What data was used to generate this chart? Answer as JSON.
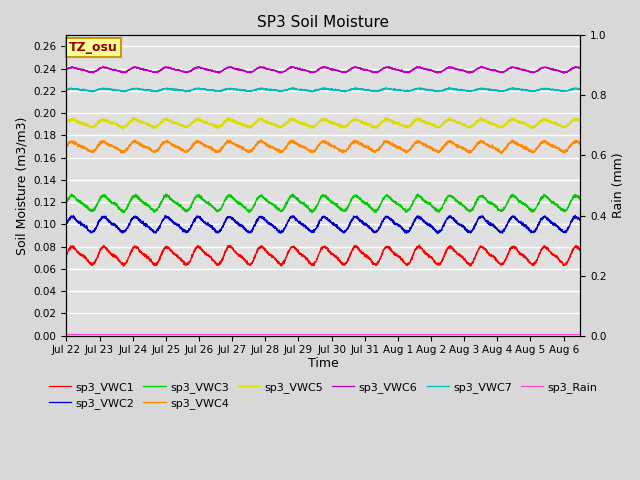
{
  "title": "SP3 Soil Moisture",
  "xlabel": "Time",
  "ylabel_left": "Soil Moisture (m3/m3)",
  "ylabel_right": "Rain (mm)",
  "ylim_left": [
    0.0,
    0.27
  ],
  "ylim_right": [
    0.0,
    1.0
  ],
  "yticks_left": [
    0.0,
    0.02,
    0.04,
    0.06,
    0.08,
    0.1,
    0.12,
    0.14,
    0.16,
    0.18,
    0.2,
    0.22,
    0.24,
    0.26
  ],
  "yticks_right": [
    0.0,
    0.2,
    0.4,
    0.6,
    0.8,
    1.0
  ],
  "xtick_labels": [
    "Jul 22",
    "Jul 23",
    "Jul 24",
    "Jul 25",
    "Jul 26",
    "Jul 27",
    "Jul 28",
    "Jul 29",
    "Jul 30",
    "Jul 31",
    "Aug 1",
    "Aug 2",
    "Aug 3",
    "Aug 4",
    "Aug 5",
    "Aug 6"
  ],
  "series": {
    "sp3_VWC1": {
      "color": "#ff0000",
      "base": 0.072,
      "amp": 0.007,
      "period": 0.95,
      "phase": 0.0,
      "noise": 0.002
    },
    "sp3_VWC2": {
      "color": "#0000cc",
      "base": 0.1,
      "amp": 0.006,
      "period": 0.95,
      "phase": 0.05,
      "noise": 0.002
    },
    "sp3_VWC3": {
      "color": "#00cc00",
      "base": 0.119,
      "amp": 0.006,
      "period": 0.95,
      "phase": 0.05,
      "noise": 0.002
    },
    "sp3_VWC4": {
      "color": "#ff8800",
      "base": 0.17,
      "amp": 0.004,
      "period": 0.95,
      "phase": 0.1,
      "noise": 0.002
    },
    "sp3_VWC5": {
      "color": "#dddd00",
      "base": 0.191,
      "amp": 0.003,
      "period": 0.95,
      "phase": 0.1,
      "noise": 0.002
    },
    "sp3_VWC6": {
      "color": "#bb00bb",
      "base": 0.239,
      "amp": 0.002,
      "period": 0.95,
      "phase": 0.0,
      "noise": 0.001
    },
    "sp3_VWC7": {
      "color": "#00bbbb",
      "base": 0.221,
      "amp": 0.001,
      "period": 0.95,
      "phase": 0.0,
      "noise": 0.001
    },
    "sp3_Rain": {
      "color": "#ff44cc",
      "base": 0.001,
      "amp": 0.0,
      "period": 1.0,
      "phase": 0.0,
      "noise": 0.0
    }
  },
  "legend_order": [
    "sp3_VWC1",
    "sp3_VWC2",
    "sp3_VWC3",
    "sp3_VWC4",
    "sp3_VWC5",
    "sp3_VWC6",
    "sp3_VWC7",
    "sp3_Rain"
  ],
  "annotation_text": "TZ_osu",
  "annotation_bg": "#ffff99",
  "annotation_border": "#cc9900",
  "annotation_text_color": "#990000",
  "background_color": "#d8d8d8",
  "plot_bg": "#e0e0e0",
  "grid_color": "#ffffff",
  "figsize": [
    6.4,
    4.8
  ],
  "dpi": 100
}
